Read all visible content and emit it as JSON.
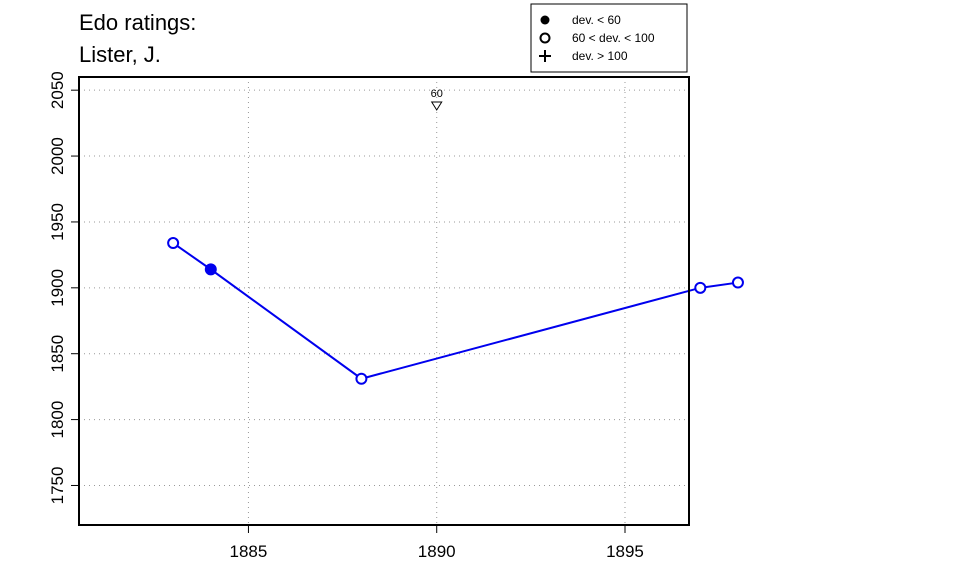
{
  "chart_data": {
    "type": "line",
    "title": "Edo ratings:",
    "subtitle": "Lister, J.",
    "x": [
      1883,
      1884,
      1888,
      1897,
      1898
    ],
    "values": [
      1934,
      1914,
      1831,
      1900,
      1904
    ],
    "markers": [
      "open",
      "filled",
      "open",
      "open",
      "open"
    ],
    "xlim": [
      1880.5,
      1896.7
    ],
    "ylim": [
      1720,
      2060
    ],
    "xticks": [
      1885,
      1890,
      1895
    ],
    "yticks": [
      1750,
      1800,
      1850,
      1900,
      1950,
      2000,
      2050
    ],
    "grid": true,
    "line_color": "#0000ee",
    "annotation": {
      "x": 1890,
      "y": 2038,
      "label": "60"
    },
    "legend": {
      "placement": "top-right",
      "entries": [
        {
          "symbol": "filled",
          "label": "dev. < 60"
        },
        {
          "symbol": "open",
          "label": "60 < dev. < 100"
        },
        {
          "symbol": "plus",
          "label": "dev. > 100"
        }
      ]
    }
  }
}
